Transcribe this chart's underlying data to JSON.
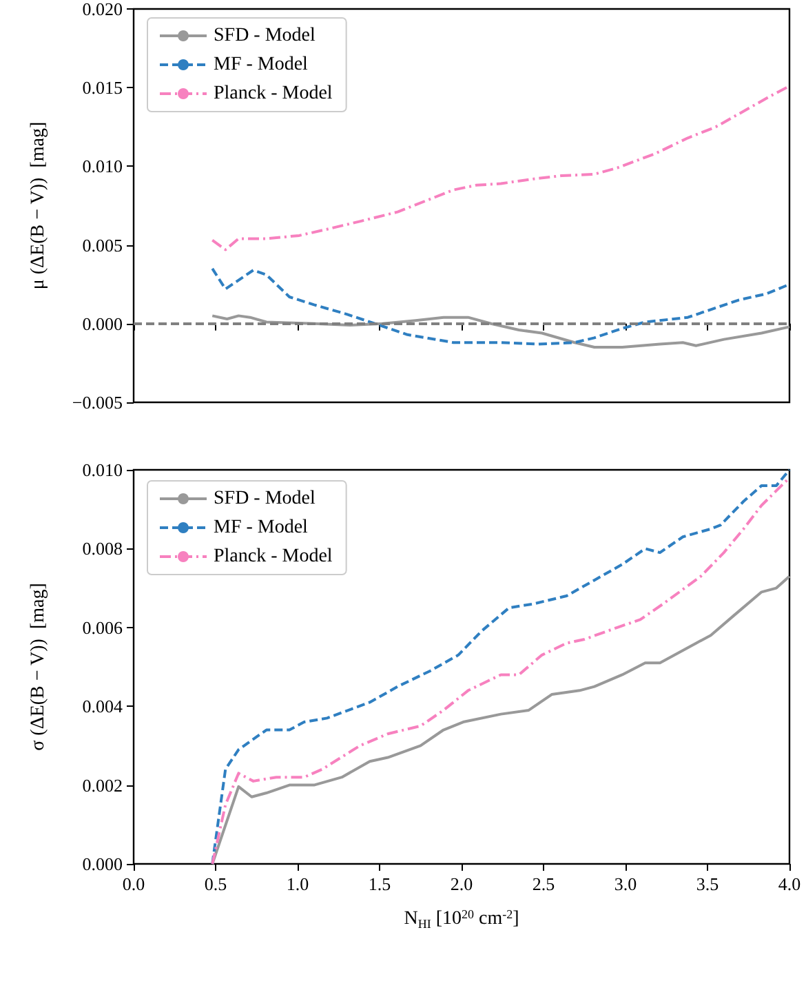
{
  "chart_data": [
    {
      "type": "line",
      "ylabel": "μ (ΔE(B − V))  [mag]",
      "xlim": [
        0,
        4
      ],
      "xticks": [
        0,
        0.5,
        1,
        1.5,
        2,
        2.5,
        3,
        3.5,
        4
      ],
      "ylim": [
        -0.005,
        0.02
      ],
      "yticks": [
        {
          "value": -0.005,
          "label": "−0.005"
        },
        {
          "value": 0,
          "label": "0.000"
        },
        {
          "value": 0.005,
          "label": "0.005"
        },
        {
          "value": 0.01,
          "label": "0.010"
        },
        {
          "value": 0.015,
          "label": "0.015"
        },
        {
          "value": 0.02,
          "label": "0.020"
        }
      ],
      "tick_labels": "y",
      "legend": "top left",
      "ref_lines": [
        {
          "axis": "y",
          "value": 0,
          "color": "#808080",
          "line_style": "dashed"
        }
      ],
      "series": [
        {
          "name": "SFD - Model",
          "color": "#999999",
          "line_style": "solid",
          "x": [
            0.48,
            0.57,
            0.64,
            0.71,
            0.81,
            1.1,
            1.32,
            1.52,
            1.72,
            1.89,
            2.04,
            2.18,
            2.35,
            2.49,
            2.69,
            2.81,
            2.98,
            3.21,
            3.35,
            3.43,
            3.6,
            3.83,
            4.0
          ],
          "values": [
            0.0005,
            0.0003,
            0.0005,
            0.0004,
            0.0001,
            0,
            -0.0001,
            0,
            0.0002,
            0.0004,
            0.0004,
            0,
            -0.0004,
            -0.0006,
            -0.0012,
            -0.0015,
            -0.0015,
            -0.0013,
            -0.0012,
            -0.0014,
            -0.001,
            -0.0006,
            -0.0002
          ]
        },
        {
          "name": "MF - Model",
          "color": "#2f7fc1",
          "line_style": "dashed",
          "x": [
            0.48,
            0.56,
            0.73,
            0.81,
            0.95,
            1.1,
            1.3,
            1.5,
            1.67,
            1.95,
            2.24,
            2.46,
            2.69,
            2.81,
            2.98,
            3.12,
            3.38,
            3.55,
            3.69,
            3.86,
            4.0
          ],
          "values": [
            0.0035,
            0.0022,
            0.0034,
            0.0031,
            0.0017,
            0.0012,
            0.0006,
            -0.0001,
            -0.0007,
            -0.0012,
            -0.0012,
            -0.0013,
            -0.0012,
            -0.0009,
            -0.0003,
            0.0001,
            0.0004,
            0.001,
            0.0015,
            0.0019,
            0.0025
          ]
        },
        {
          "name": "Planck - Model",
          "color": "#f781bf",
          "line_style": "dashdot",
          "x": [
            0.48,
            0.56,
            0.64,
            0.81,
            1.01,
            1.18,
            1.38,
            1.61,
            1.78,
            1.95,
            2.09,
            2.24,
            2.44,
            2.61,
            2.81,
            2.95,
            3.18,
            3.38,
            3.55,
            3.72,
            3.89,
            4.0
          ],
          "values": [
            0.0053,
            0.0047,
            0.0054,
            0.0054,
            0.0056,
            0.006,
            0.0065,
            0.0071,
            0.0078,
            0.0085,
            0.0088,
            0.0089,
            0.0092,
            0.0094,
            0.0095,
            0.0099,
            0.0108,
            0.0118,
            0.0125,
            0.0135,
            0.0145,
            0.0151
          ]
        }
      ]
    },
    {
      "type": "line",
      "ylabel": "σ (ΔE(B − V))  [mag]",
      "xlabel": "N$_{HI}$ [10$^{20}$ cm$^{-2}$]",
      "xlim": [
        0,
        4
      ],
      "xticks": [
        {
          "value": 0,
          "label": "0.0"
        },
        {
          "value": 0.5,
          "label": "0.5"
        },
        {
          "value": 1,
          "label": "1.0"
        },
        {
          "value": 1.5,
          "label": "1.5"
        },
        {
          "value": 2,
          "label": "2.0"
        },
        {
          "value": 2.5,
          "label": "2.5"
        },
        {
          "value": 3,
          "label": "3.0"
        },
        {
          "value": 3.5,
          "label": "3.5"
        },
        {
          "value": 4,
          "label": "4.0"
        }
      ],
      "ylim": [
        0,
        0.01
      ],
      "yticks": [
        {
          "value": 0,
          "label": "0.000"
        },
        {
          "value": 0.002,
          "label": "0.002"
        },
        {
          "value": 0.004,
          "label": "0.004"
        },
        {
          "value": 0.006,
          "label": "0.006"
        },
        {
          "value": 0.008,
          "label": "0.008"
        },
        {
          "value": 0.01,
          "label": "0.010"
        }
      ],
      "legend": "top left",
      "series": [
        {
          "name": "SFD - Model",
          "color": "#999999",
          "line_style": "solid",
          "x": [
            0.48,
            0.64,
            0.72,
            0.81,
            0.95,
            1.1,
            1.27,
            1.44,
            1.55,
            1.75,
            1.89,
            2.01,
            2.24,
            2.41,
            2.55,
            2.72,
            2.81,
            2.98,
            3.12,
            3.21,
            3.43,
            3.52,
            3.66,
            3.83,
            3.92,
            4.0
          ],
          "values": [
            0,
            0.00196,
            0.0017,
            0.0018,
            0.002,
            0.002,
            0.0022,
            0.0026,
            0.0027,
            0.003,
            0.0034,
            0.0036,
            0.0038,
            0.0039,
            0.0043,
            0.0044,
            0.0045,
            0.0048,
            0.0051,
            0.0051,
            0.0056,
            0.0058,
            0.0063,
            0.0069,
            0.007,
            0.0073
          ]
        },
        {
          "name": "MF - Model",
          "color": "#2f7fc1",
          "line_style": "dashed",
          "x": [
            0.48,
            0.56,
            0.64,
            0.81,
            0.95,
            1.04,
            1.18,
            1.44,
            1.61,
            1.81,
            1.98,
            2.12,
            2.29,
            2.44,
            2.64,
            2.81,
            2.98,
            3.12,
            3.21,
            3.35,
            3.52,
            3.58,
            3.72,
            3.83,
            3.92,
            4.0
          ],
          "values": [
            0,
            0.0024,
            0.0029,
            0.0034,
            0.0034,
            0.0036,
            0.0037,
            0.0041,
            0.0045,
            0.0049,
            0.0053,
            0.0059,
            0.0065,
            0.0066,
            0.0068,
            0.0072,
            0.0076,
            0.008,
            0.0079,
            0.0083,
            0.0085,
            0.0086,
            0.0092,
            0.0096,
            0.0096,
            0.01
          ]
        },
        {
          "name": "Planck - Model",
          "color": "#f781bf",
          "line_style": "dashdot",
          "x": [
            0.48,
            0.56,
            0.64,
            0.73,
            0.87,
            1.04,
            1.15,
            1.38,
            1.55,
            1.75,
            1.89,
            2.04,
            2.24,
            2.35,
            2.49,
            2.64,
            2.75,
            2.95,
            3.09,
            3.23,
            3.46,
            3.6,
            3.72,
            3.83,
            4.0
          ],
          "values": [
            0,
            0.0015,
            0.0023,
            0.0021,
            0.0022,
            0.0022,
            0.0024,
            0.003,
            0.0033,
            0.0035,
            0.0039,
            0.0044,
            0.0048,
            0.0048,
            0.0053,
            0.0056,
            0.0057,
            0.006,
            0.0062,
            0.0066,
            0.0073,
            0.0079,
            0.0085,
            0.0091,
            0.0098
          ]
        }
      ]
    }
  ]
}
